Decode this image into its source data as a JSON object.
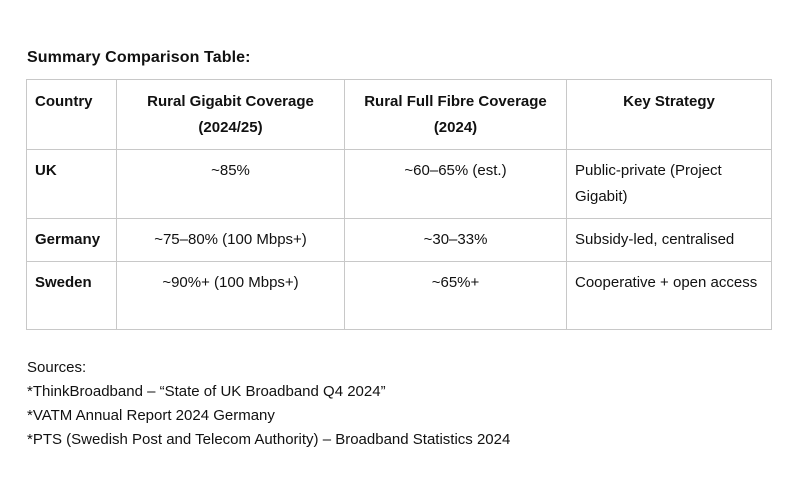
{
  "title": "Summary Comparison Table:",
  "table": {
    "headers": [
      "Country",
      "Rural Gigabit Coverage (2024/25)",
      "Rural Full Fibre Coverage (2024)",
      "Key Strategy"
    ],
    "rows": [
      {
        "country": "UK",
        "gigabit": "~85%",
        "fibre": "~60–65% (est.)",
        "strategy": "Public-private (Project Gigabit)"
      },
      {
        "country": "Germany",
        "gigabit": "~75–80% (100 Mbps+)",
        "fibre": "~30–33%",
        "strategy": "Subsidy-led, centralised"
      },
      {
        "country": "Sweden",
        "gigabit": "~90%+ (100 Mbps+)",
        "fibre": "~65%+",
        "strategy": "Cooperative + open access"
      }
    ]
  },
  "sources": {
    "heading": "Sources:",
    "items": [
      "*ThinkBroadband – “State of UK Broadband Q4 2024”",
      "*VATM Annual Report 2024 Germany",
      "*PTS (Swedish Post and Telecom Authority) – Broadband Statistics 2024"
    ]
  }
}
